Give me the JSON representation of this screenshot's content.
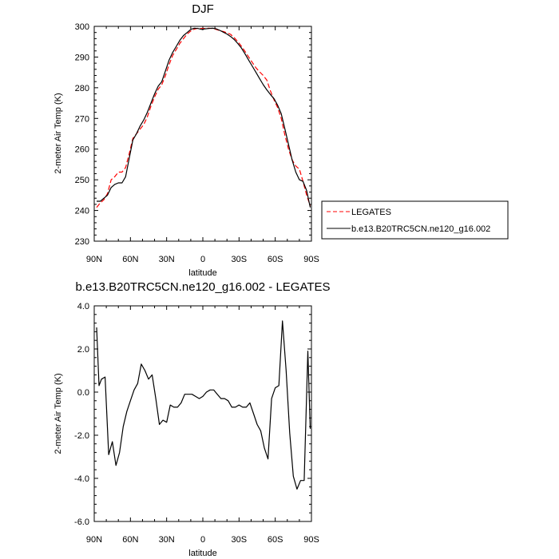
{
  "chart_data": [
    {
      "type": "line",
      "title": "DJF",
      "xlabel": "latitude",
      "ylabel": "2-meter Air Temp (K)",
      "xlim": [
        90,
        -90
      ],
      "ylim": [
        230,
        300
      ],
      "x_ticks": [
        90,
        60,
        30,
        0,
        -30,
        -60,
        -90
      ],
      "x_tick_labels": [
        "90N",
        "60N",
        "30N",
        "0",
        "30S",
        "60S",
        "90S"
      ],
      "y_ticks": [
        230,
        240,
        250,
        260,
        270,
        280,
        290,
        300
      ],
      "y_tick_labels": [
        "230",
        "240",
        "250",
        "260",
        "270",
        "280",
        "290",
        "300"
      ],
      "grid": false,
      "legend_position": "right",
      "series": [
        {
          "name": "LEGATES",
          "color": "#ff0000",
          "dash": "dashed",
          "x": [
            88,
            85,
            82,
            79,
            76,
            73,
            70,
            67,
            64,
            61,
            58,
            55,
            52,
            49,
            46,
            43,
            40,
            37,
            34,
            31,
            28,
            25,
            22,
            19,
            16,
            13,
            10,
            7,
            4,
            1,
            -2,
            -5,
            -8,
            -11,
            -14,
            -17,
            -20,
            -23,
            -26,
            -29,
            -32,
            -35,
            -38,
            -41,
            -44,
            -47,
            -50,
            -53,
            -56,
            -59,
            -62,
            -65,
            -68,
            -71,
            -74,
            -77,
            -80,
            -83,
            -86,
            -89
          ],
          "values": [
            241.0,
            242.5,
            243.5,
            245.5,
            250.0,
            251.0,
            252.5,
            252.5,
            254.0,
            258.5,
            263.5,
            265.0,
            266.5,
            268.0,
            270.5,
            274.0,
            277.0,
            279.5,
            281.0,
            284.0,
            287.5,
            290.5,
            292.5,
            294.5,
            296.0,
            297.5,
            298.5,
            299.1,
            299.4,
            299.3,
            299.3,
            299.4,
            299.3,
            299.0,
            298.6,
            298.3,
            297.9,
            297.4,
            296.3,
            295.0,
            293.5,
            291.8,
            290.0,
            288.2,
            286.5,
            285.2,
            284.0,
            282.5,
            279.0,
            276.0,
            273.5,
            270.0,
            264.5,
            260.0,
            256.5,
            254.5,
            253.5,
            249.5,
            245.0,
            241.5
          ]
        },
        {
          "name": "b.e13.B20TRC5CN.ne120_g16.002",
          "color": "#000000",
          "dash": "solid",
          "x": [
            88,
            85,
            82,
            79,
            76,
            73,
            70,
            67,
            64,
            61,
            58,
            55,
            52,
            49,
            46,
            43,
            40,
            37,
            34,
            31,
            28,
            25,
            22,
            19,
            16,
            13,
            10,
            7,
            4,
            1,
            -2,
            -5,
            -8,
            -11,
            -14,
            -17,
            -20,
            -23,
            -26,
            -29,
            -32,
            -35,
            -38,
            -41,
            -44,
            -47,
            -50,
            -53,
            -56,
            -59,
            -62,
            -65,
            -68,
            -71,
            -74,
            -77,
            -80,
            -83,
            -86,
            -89
          ],
          "values": [
            243.0,
            243.0,
            244.0,
            245.0,
            247.5,
            248.5,
            249.0,
            249.0,
            251.0,
            257.0,
            263.0,
            265.0,
            267.5,
            269.5,
            272.0,
            275.0,
            278.0,
            280.5,
            282.0,
            285.5,
            289.0,
            291.5,
            293.5,
            295.5,
            297.0,
            298.0,
            299.0,
            299.4,
            299.3,
            299.0,
            299.2,
            299.3,
            299.4,
            299.2,
            298.7,
            298.1,
            297.5,
            296.7,
            295.7,
            294.4,
            292.9,
            291.0,
            289.0,
            287.0,
            285.0,
            283.0,
            281.0,
            279.3,
            277.8,
            276.4,
            274.3,
            271.5,
            266.5,
            261.5,
            256.5,
            252.5,
            250.0,
            249.5,
            246.5,
            241.0
          ]
        }
      ]
    },
    {
      "type": "line",
      "title": "b.e13.B20TRC5CN.ne120_g16.002 - LEGATES",
      "xlabel": "latitude",
      "ylabel": "2-meter Air Temp (K)",
      "xlim": [
        90,
        -90
      ],
      "ylim": [
        -6.0,
        4.0
      ],
      "x_ticks": [
        90,
        60,
        30,
        0,
        -30,
        -60,
        -90
      ],
      "x_tick_labels": [
        "90N",
        "60N",
        "30N",
        "0",
        "30S",
        "60S",
        "90S"
      ],
      "y_ticks": [
        -6,
        -4,
        -2,
        0,
        2,
        4
      ],
      "y_tick_labels": [
        "-6.0",
        "-4.0",
        "-2.0",
        "0.0",
        "2.0",
        "4.0"
      ],
      "grid": false,
      "series": [
        {
          "color": "#000000",
          "dash": "solid",
          "x": [
            88,
            86,
            84,
            81,
            78,
            75,
            72,
            69,
            66,
            63,
            60,
            57,
            54,
            51,
            48,
            45,
            42,
            39,
            36,
            33,
            30,
            27,
            24,
            21,
            18,
            15,
            12,
            9,
            6,
            3,
            0,
            -3,
            -6,
            -9,
            -12,
            -15,
            -18,
            -21,
            -24,
            -27,
            -30,
            -33,
            -36,
            -39,
            -42,
            -45,
            -48,
            -51,
            -54,
            -57,
            -60,
            -63,
            -66,
            -69,
            -72,
            -75,
            -78,
            -81,
            -84,
            -87,
            -89
          ],
          "values": [
            3.0,
            0.3,
            0.6,
            0.7,
            -2.9,
            -2.3,
            -3.4,
            -2.8,
            -1.6,
            -0.9,
            -0.4,
            0.1,
            0.4,
            1.3,
            1.0,
            0.6,
            0.8,
            -0.3,
            -1.5,
            -1.3,
            -1.4,
            -0.6,
            -0.7,
            -0.7,
            -0.5,
            -0.1,
            -0.1,
            -0.1,
            -0.2,
            -0.3,
            -0.2,
            0.0,
            0.1,
            0.1,
            -0.1,
            -0.3,
            -0.3,
            -0.4,
            -0.7,
            -0.7,
            -0.6,
            -0.7,
            -0.7,
            -0.5,
            -1.0,
            -1.5,
            -1.8,
            -2.6,
            -3.1,
            -0.3,
            0.2,
            0.3,
            3.3,
            1.0,
            -1.9,
            -3.9,
            -4.5,
            -4.1,
            -4.1,
            1.9,
            -1.7
          ]
        }
      ]
    }
  ]
}
